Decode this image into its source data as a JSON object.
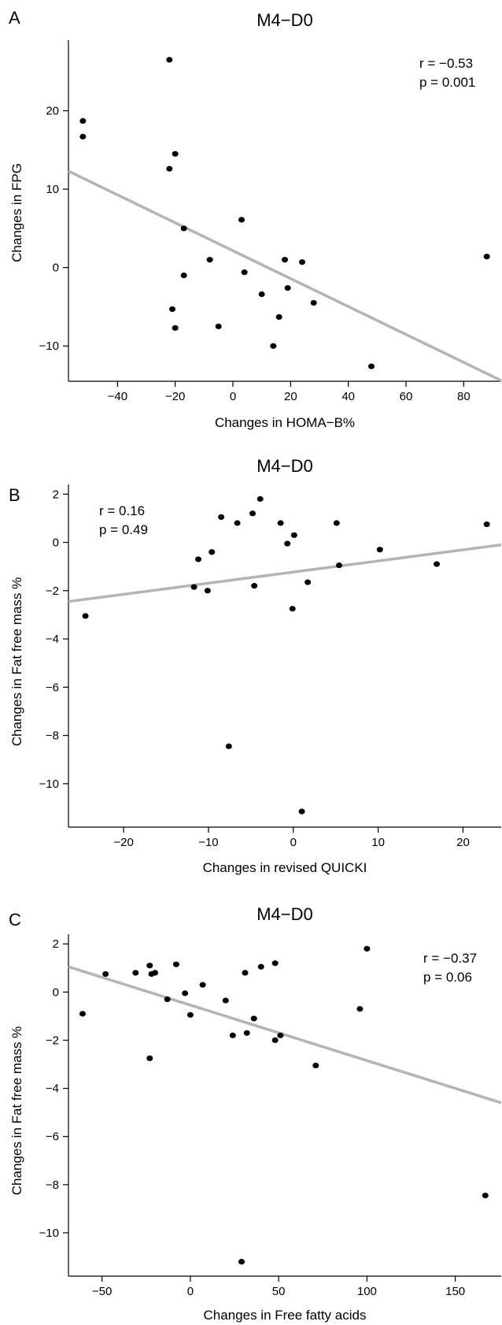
{
  "chart_data": [
    {
      "type": "scatter",
      "panel_label": "A",
      "title": "M4−D0",
      "xlabel": "Changes in HOMA−B%",
      "ylabel": "Changes in FPG",
      "xlim": [
        -57,
        93
      ],
      "ylim": [
        -14.5,
        29
      ],
      "xticks": [
        -40,
        -20,
        0,
        20,
        40,
        60,
        80
      ],
      "yticks": [
        -10,
        0,
        10,
        20
      ],
      "stats": {
        "r": "r = −0.53",
        "p": "p = 0.001"
      },
      "stats_position": "top-right",
      "regression_line": {
        "x": [
          -57,
          93
        ],
        "y": [
          12.3,
          -14.4
        ]
      },
      "points": [
        {
          "x": -52,
          "y": 18.7
        },
        {
          "x": -52,
          "y": 16.7
        },
        {
          "x": -22,
          "y": 26.5
        },
        {
          "x": -20,
          "y": 14.5
        },
        {
          "x": -22,
          "y": 12.6
        },
        {
          "x": -17,
          "y": 5.0
        },
        {
          "x": -17,
          "y": -1.0
        },
        {
          "x": -8,
          "y": 1.0
        },
        {
          "x": 3,
          "y": 6.1
        },
        {
          "x": 4,
          "y": -0.6
        },
        {
          "x": -21,
          "y": -5.3
        },
        {
          "x": -20,
          "y": -7.7
        },
        {
          "x": -5,
          "y": -7.5
        },
        {
          "x": 10,
          "y": -3.4
        },
        {
          "x": 18,
          "y": 1.0
        },
        {
          "x": 19,
          "y": -2.6
        },
        {
          "x": 24,
          "y": 0.7
        },
        {
          "x": 28,
          "y": -4.5
        },
        {
          "x": 16,
          "y": -6.3
        },
        {
          "x": 14,
          "y": -10.0
        },
        {
          "x": 48,
          "y": -12.6
        },
        {
          "x": 88,
          "y": 1.4
        }
      ]
    },
    {
      "type": "scatter",
      "panel_label": "B",
      "title": "M4−D0",
      "xlabel": "Changes in revised QUICKI",
      "ylabel": "Changes in Fat free mass %",
      "xlim": [
        -26.5,
        24.5
      ],
      "ylim": [
        -11.8,
        2.4
      ],
      "xticks": [
        -20,
        -10,
        0,
        10,
        20
      ],
      "yticks": [
        -10,
        -8,
        -6,
        -4,
        -2,
        0,
        2
      ],
      "stats": {
        "r": "r = 0.16",
        "p": "p = 0.49"
      },
      "stats_position": "top-left",
      "regression_line": {
        "x": [
          -26.5,
          24.5
        ],
        "y": [
          -2.45,
          -0.1
        ]
      },
      "points": [
        {
          "x": -24.5,
          "y": -3.05
        },
        {
          "x": -11.7,
          "y": -1.85
        },
        {
          "x": -11.2,
          "y": -0.7
        },
        {
          "x": -10.1,
          "y": -2.0
        },
        {
          "x": -9.6,
          "y": -0.4
        },
        {
          "x": -8.5,
          "y": 1.05
        },
        {
          "x": -7.6,
          "y": -8.45
        },
        {
          "x": -6.6,
          "y": 0.8
        },
        {
          "x": -4.8,
          "y": 1.2
        },
        {
          "x": -4.6,
          "y": -1.8
        },
        {
          "x": -3.9,
          "y": 1.8
        },
        {
          "x": -1.5,
          "y": 0.8
        },
        {
          "x": -0.7,
          "y": -0.05
        },
        {
          "x": -0.1,
          "y": -2.75
        },
        {
          "x": 0.1,
          "y": 0.3
        },
        {
          "x": 1.0,
          "y": -11.15
        },
        {
          "x": 1.7,
          "y": -1.65
        },
        {
          "x": 5.1,
          "y": 0.8
        },
        {
          "x": 5.4,
          "y": -0.95
        },
        {
          "x": 10.2,
          "y": -0.3
        },
        {
          "x": 16.9,
          "y": -0.9
        },
        {
          "x": 22.8,
          "y": 0.75
        }
      ]
    },
    {
      "type": "scatter",
      "panel_label": "C",
      "title": "M4−D0",
      "xlabel": "Changes in Free fatty acids",
      "ylabel": "Changes in Fat free mass %",
      "xlim": [
        -69,
        176
      ],
      "ylim": [
        -11.8,
        2.4
      ],
      "xticks": [
        -50,
        0,
        50,
        100,
        150
      ],
      "yticks": [
        -10,
        -8,
        -6,
        -4,
        -2,
        0,
        2
      ],
      "stats": {
        "r": "r = −0.37",
        "p": "p = 0.06"
      },
      "stats_position": "top-right",
      "regression_line": {
        "x": [
          -69,
          176
        ],
        "y": [
          1.05,
          -4.6
        ]
      },
      "points": [
        {
          "x": -61,
          "y": -0.9
        },
        {
          "x": -48,
          "y": 0.75
        },
        {
          "x": -31,
          "y": 0.8
        },
        {
          "x": -23,
          "y": 1.1
        },
        {
          "x": -22,
          "y": 0.75
        },
        {
          "x": -20,
          "y": 0.8
        },
        {
          "x": -13,
          "y": -0.3
        },
        {
          "x": -8,
          "y": 1.15
        },
        {
          "x": -3,
          "y": -0.05
        },
        {
          "x": 0,
          "y": -0.95
        },
        {
          "x": -23,
          "y": -2.75
        },
        {
          "x": 7,
          "y": 0.3
        },
        {
          "x": 20,
          "y": -0.35
        },
        {
          "x": 24,
          "y": -1.8
        },
        {
          "x": 29,
          "y": -11.2
        },
        {
          "x": 31,
          "y": 0.8
        },
        {
          "x": 32,
          "y": -1.7
        },
        {
          "x": 36,
          "y": -1.1
        },
        {
          "x": 40,
          "y": 1.05
        },
        {
          "x": 48,
          "y": 1.2
        },
        {
          "x": 48,
          "y": -2.0
        },
        {
          "x": 51,
          "y": -1.8
        },
        {
          "x": 71,
          "y": -3.05
        },
        {
          "x": 96,
          "y": -0.7
        },
        {
          "x": 100,
          "y": 1.8
        },
        {
          "x": 167,
          "y": -8.45
        }
      ]
    }
  ],
  "colors": {
    "points": "#000000",
    "regression_line": "#b4b4b4",
    "axis": "#000000"
  }
}
